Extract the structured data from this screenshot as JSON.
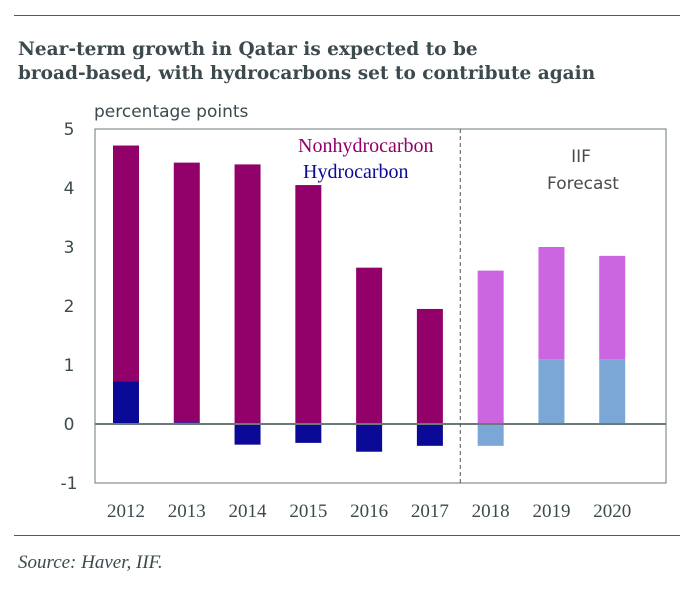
{
  "title_line1": "Near-term growth in Qatar is expected to be",
  "title_line2": "broad-based, with hydrocarbons set to contribute again",
  "source": "Source: Haver, IIF.",
  "chart_data": {
    "type": "bar",
    "stacked": true,
    "title": "Near-term growth in Qatar is expected to be broad-based, with hydrocarbons set to contribute again",
    "ylabel": "percentage points",
    "xlabel": "",
    "ylim": [
      -1,
      5
    ],
    "yticks": [
      -1,
      0,
      1,
      2,
      3,
      4,
      5
    ],
    "categories": [
      "2012",
      "2013",
      "2014",
      "2015",
      "2016",
      "2017",
      "2018",
      "2019",
      "2020"
    ],
    "forecast_from": "2018",
    "forecast_label": [
      "IIF",
      "Forecast"
    ],
    "series": [
      {
        "name": "Nonhydrocarbon",
        "values": [
          4.0,
          4.4,
          4.4,
          4.05,
          2.65,
          1.95,
          2.6,
          1.9,
          1.75
        ],
        "color": "#920069",
        "forecast_color": "#cc66e0"
      },
      {
        "name": "Hydrocarbon",
        "values": [
          0.72,
          0.03,
          -0.35,
          -0.32,
          -0.47,
          -0.37,
          -0.37,
          1.1,
          1.1
        ],
        "color": "#0a0a96",
        "forecast_color": "#7aa7d6"
      }
    ],
    "legend": [
      "Nonhydrocarbon",
      "Hydrocarbon"
    ],
    "legend_position": "top-center"
  }
}
